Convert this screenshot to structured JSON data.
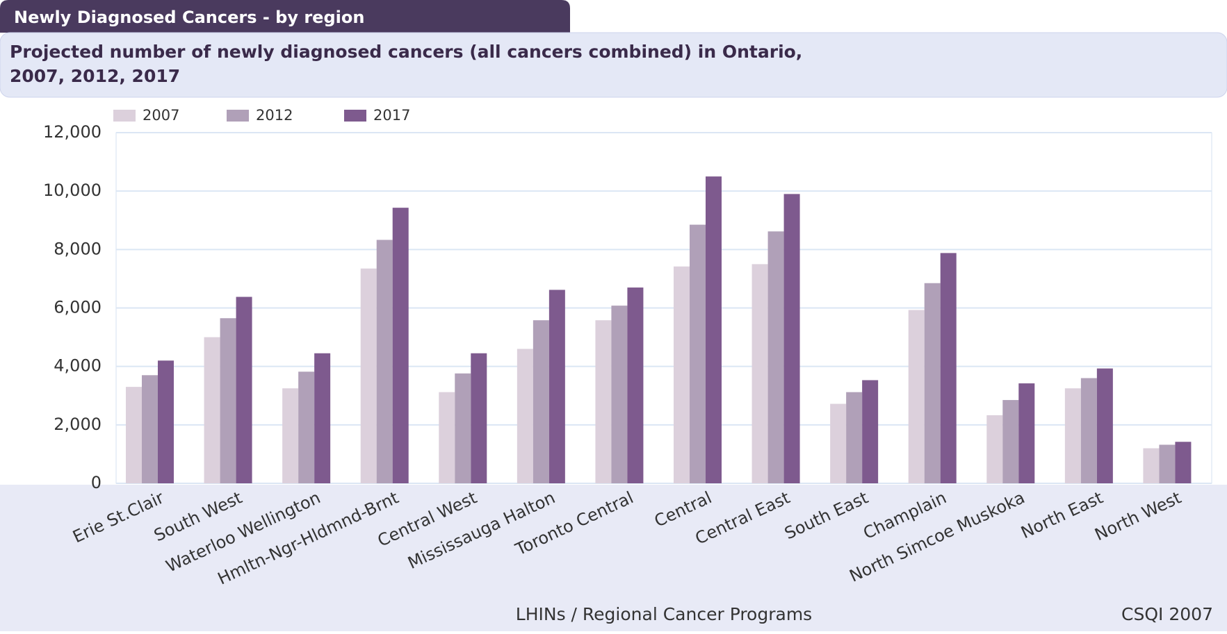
{
  "chart_data": {
    "type": "bar",
    "header": "Newly Diagnosed Cancers - by region",
    "title": "Projected number of newly diagnosed cancers (all cancers combined) in Ontario, 2007, 2012, 2017",
    "xlabel": "LHINs / Regional Cancer Programs",
    "source": "CSQI 2007",
    "categories": [
      "Erie St.Clair",
      "South West",
      "Waterloo Wellington",
      "Hmltn-Ngr-Hldmnd-Brnt",
      "Central West",
      "Mississauga Halton",
      "Toronto Central",
      "Central",
      "Central East",
      "South East",
      "Champlain",
      "North Simcoe Muskoka",
      "North East",
      "North West"
    ],
    "series": [
      {
        "name": "2007",
        "color": "#dcd0dc",
        "values": [
          3300,
          5000,
          3250,
          7350,
          3120,
          4600,
          5580,
          7420,
          7500,
          2720,
          5930,
          2330,
          3250,
          1200
        ]
      },
      {
        "name": "2012",
        "color": "#b0a0b8",
        "values": [
          3700,
          5650,
          3820,
          8330,
          3760,
          5580,
          6080,
          8850,
          8620,
          3120,
          6850,
          2850,
          3600,
          1320
        ]
      },
      {
        "name": "2017",
        "color": "#7e5a8e",
        "values": [
          4200,
          6380,
          4450,
          9430,
          4450,
          6620,
          6700,
          10500,
          9900,
          3530,
          7880,
          3420,
          3930,
          1420
        ]
      }
    ],
    "ylim": [
      0,
      12000
    ],
    "yticks": [
      0,
      {
        "value": 2000,
        "label": "2,000"
      },
      {
        "value": 4000,
        "label": "4,000"
      },
      {
        "value": 6000,
        "label": "6,000"
      },
      {
        "value": 8000,
        "label": "8,000"
      },
      {
        "value": 10000,
        "label": "10,000"
      },
      {
        "value": 12000,
        "label": "12,000"
      }
    ],
    "grid": true
  }
}
